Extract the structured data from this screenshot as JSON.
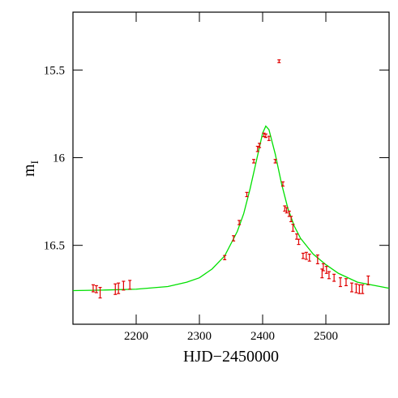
{
  "chart_data": {
    "type": "scatter",
    "xlabel": "HJD−2450000",
    "ylabel": "m",
    "ylabel_sub": "I",
    "xlim": [
      2100,
      2600
    ],
    "ylim": [
      16.95,
      15.17
    ],
    "xticks": [
      2200,
      2300,
      2400,
      2500
    ],
    "yticks": [
      15.5,
      16,
      16.5
    ],
    "color": "#e00000",
    "line_color": "#00e000",
    "x": [
      2132,
      2137,
      2143,
      2167,
      2172,
      2180,
      2190,
      2340,
      2354,
      2363,
      2375,
      2386,
      2392,
      2395,
      2402,
      2405,
      2410,
      2420,
      2426,
      2432,
      2435,
      2438,
      2442,
      2445,
      2448,
      2454,
      2457,
      2464,
      2469,
      2474,
      2487,
      2494,
      2496,
      2501,
      2505,
      2513,
      2523,
      2532,
      2541,
      2548,
      2553,
      2558,
      2567
    ],
    "values": [
      16.745,
      16.75,
      16.77,
      16.75,
      16.745,
      16.73,
      16.725,
      16.57,
      16.46,
      16.37,
      16.21,
      16.02,
      15.95,
      15.93,
      15.87,
      15.875,
      15.89,
      16.02,
      15.45,
      16.15,
      16.29,
      16.3,
      16.32,
      16.35,
      16.4,
      16.45,
      16.48,
      16.56,
      16.56,
      16.57,
      16.58,
      16.66,
      16.625,
      16.64,
      16.67,
      16.685,
      16.71,
      16.71,
      16.74,
      16.745,
      16.75,
      16.75,
      16.7
    ],
    "errors": [
      0.02,
      0.02,
      0.03,
      0.03,
      0.03,
      0.025,
      0.025,
      0.012,
      0.015,
      0.012,
      0.012,
      0.01,
      0.015,
      0.012,
      0.01,
      0.01,
      0.012,
      0.01,
      0.008,
      0.012,
      0.015,
      0.015,
      0.015,
      0.015,
      0.02,
      0.015,
      0.015,
      0.015,
      0.02,
      0.02,
      0.025,
      0.025,
      0.02,
      0.02,
      0.02,
      0.02,
      0.025,
      0.02,
      0.025,
      0.025,
      0.025,
      0.025,
      0.025
    ],
    "model": {
      "x": [
        2100,
        2150,
        2200,
        2250,
        2280,
        2300,
        2320,
        2340,
        2360,
        2370,
        2380,
        2390,
        2400,
        2405,
        2410,
        2420,
        2430,
        2440,
        2450,
        2460,
        2480,
        2500,
        2520,
        2550,
        2600
      ],
      "values": [
        16.758,
        16.755,
        16.75,
        16.735,
        16.71,
        16.685,
        16.635,
        16.56,
        16.42,
        16.32,
        16.18,
        16.02,
        15.86,
        15.82,
        15.84,
        15.98,
        16.15,
        16.29,
        16.39,
        16.46,
        16.55,
        16.61,
        16.66,
        16.71,
        16.745
      ]
    }
  }
}
